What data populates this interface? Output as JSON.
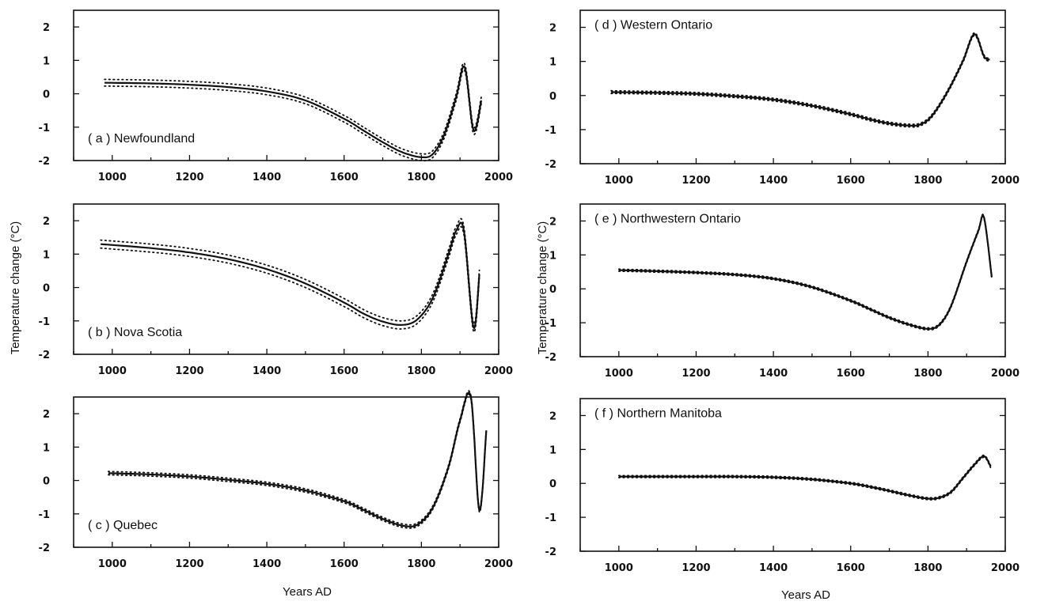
{
  "figure": {
    "left_ylabel": "Temperature change (°C)",
    "right_ylabel": "Temperature change (°C)",
    "left_xlabel": "Years AD",
    "right_xlabel": "Years AD"
  },
  "chart_data": [
    {
      "id": "a",
      "type": "line",
      "panel_label": "( a ) Newfoundland",
      "xlim": [
        900,
        2000
      ],
      "ylim": [
        -2,
        2.5
      ],
      "xticks": [
        1000,
        1200,
        1400,
        1600,
        1800,
        2000
      ],
      "yticks": [
        -2,
        -1,
        0,
        1,
        2
      ],
      "x": [
        980,
        1100,
        1200,
        1300,
        1400,
        1500,
        1600,
        1650,
        1700,
        1750,
        1800,
        1830,
        1860,
        1890,
        1912,
        1935,
        1955
      ],
      "y": [
        0.33,
        0.31,
        0.27,
        0.2,
        0.07,
        -0.2,
        -0.75,
        -1.1,
        -1.45,
        -1.75,
        -1.9,
        -1.8,
        -1.2,
        -0.1,
        0.8,
        -1.1,
        -0.2
      ],
      "band": 0.1
    },
    {
      "id": "b",
      "type": "line",
      "panel_label": "( b ) Nova Scotia",
      "xlim": [
        900,
        2000
      ],
      "ylim": [
        -2,
        2.5
      ],
      "xticks": [
        1000,
        1200,
        1400,
        1600,
        1800,
        2000
      ],
      "yticks": [
        -2,
        -1,
        0,
        1,
        2
      ],
      "x": [
        970,
        1100,
        1200,
        1300,
        1400,
        1500,
        1600,
        1650,
        1700,
        1750,
        1790,
        1830,
        1870,
        1890,
        1910,
        1935,
        1950
      ],
      "y": [
        1.3,
        1.18,
        1.05,
        0.85,
        0.55,
        0.12,
        -0.45,
        -0.78,
        -1.02,
        -1.12,
        -0.95,
        -0.3,
        1.0,
        1.7,
        1.7,
        -1.2,
        0.4
      ],
      "band": 0.12
    },
    {
      "id": "c",
      "type": "line",
      "panel_label": "( c ) Quebec",
      "xlim": [
        900,
        2000
      ],
      "ylim": [
        -2,
        2.5
      ],
      "xticks": [
        1000,
        1200,
        1400,
        1600,
        1800,
        2000
      ],
      "yticks": [
        -2,
        -1,
        0,
        1,
        2
      ],
      "x": [
        990,
        1100,
        1200,
        1300,
        1400,
        1500,
        1600,
        1650,
        1700,
        1750,
        1790,
        1830,
        1870,
        1900,
        1928,
        1950,
        1968
      ],
      "y": [
        0.22,
        0.18,
        0.12,
        0.02,
        -0.1,
        -0.3,
        -0.62,
        -0.88,
        -1.15,
        -1.35,
        -1.32,
        -0.8,
        0.4,
        1.8,
        2.5,
        -0.9,
        1.5
      ],
      "band": 0.05
    },
    {
      "id": "d",
      "type": "line",
      "panel_label": "( d ) Western Ontario",
      "xlim": [
        900,
        2000
      ],
      "ylim": [
        -2,
        2.5
      ],
      "xticks": [
        1000,
        1200,
        1400,
        1600,
        1800,
        2000
      ],
      "yticks": [
        -2,
        -1,
        0,
        1,
        2
      ],
      "x": [
        980,
        1100,
        1200,
        1300,
        1400,
        1500,
        1600,
        1650,
        1700,
        1750,
        1780,
        1810,
        1850,
        1890,
        1920,
        1945,
        1960
      ],
      "y": [
        0.1,
        0.08,
        0.05,
        -0.02,
        -0.12,
        -0.3,
        -0.55,
        -0.7,
        -0.82,
        -0.88,
        -0.85,
        -0.6,
        0.1,
        1.0,
        1.8,
        1.15,
        1.05
      ],
      "band": 0.04
    },
    {
      "id": "e",
      "type": "line",
      "panel_label": "( e ) Northwestern Ontario",
      "xlim": [
        900,
        2000
      ],
      "ylim": [
        -2,
        2.5
      ],
      "xticks": [
        1000,
        1200,
        1400,
        1600,
        1800,
        2000
      ],
      "yticks": [
        -2,
        -1,
        0,
        1,
        2
      ],
      "x": [
        1000,
        1100,
        1200,
        1300,
        1400,
        1500,
        1600,
        1650,
        1700,
        1750,
        1800,
        1830,
        1860,
        1900,
        1930,
        1945,
        1965
      ],
      "y": [
        0.55,
        0.52,
        0.48,
        0.42,
        0.3,
        0.05,
        -0.35,
        -0.6,
        -0.85,
        -1.05,
        -1.18,
        -1.05,
        -0.5,
        0.8,
        1.7,
        2.1,
        0.35
      ],
      "band": 0.03
    },
    {
      "id": "f",
      "type": "line",
      "panel_label": "( f ) Northern Manitoba",
      "xlim": [
        900,
        2000
      ],
      "ylim": [
        -2,
        2.5
      ],
      "xticks": [
        1000,
        1200,
        1400,
        1600,
        1800,
        2000
      ],
      "yticks": [
        -2,
        -1,
        0,
        1,
        2
      ],
      "x": [
        1000,
        1100,
        1200,
        1300,
        1400,
        1500,
        1600,
        1650,
        1700,
        1750,
        1800,
        1830,
        1860,
        1890,
        1920,
        1945,
        1962
      ],
      "y": [
        0.2,
        0.2,
        0.2,
        0.2,
        0.18,
        0.12,
        0.0,
        -0.1,
        -0.22,
        -0.35,
        -0.45,
        -0.42,
        -0.25,
        0.15,
        0.55,
        0.8,
        0.5
      ],
      "band": 0.03
    }
  ]
}
